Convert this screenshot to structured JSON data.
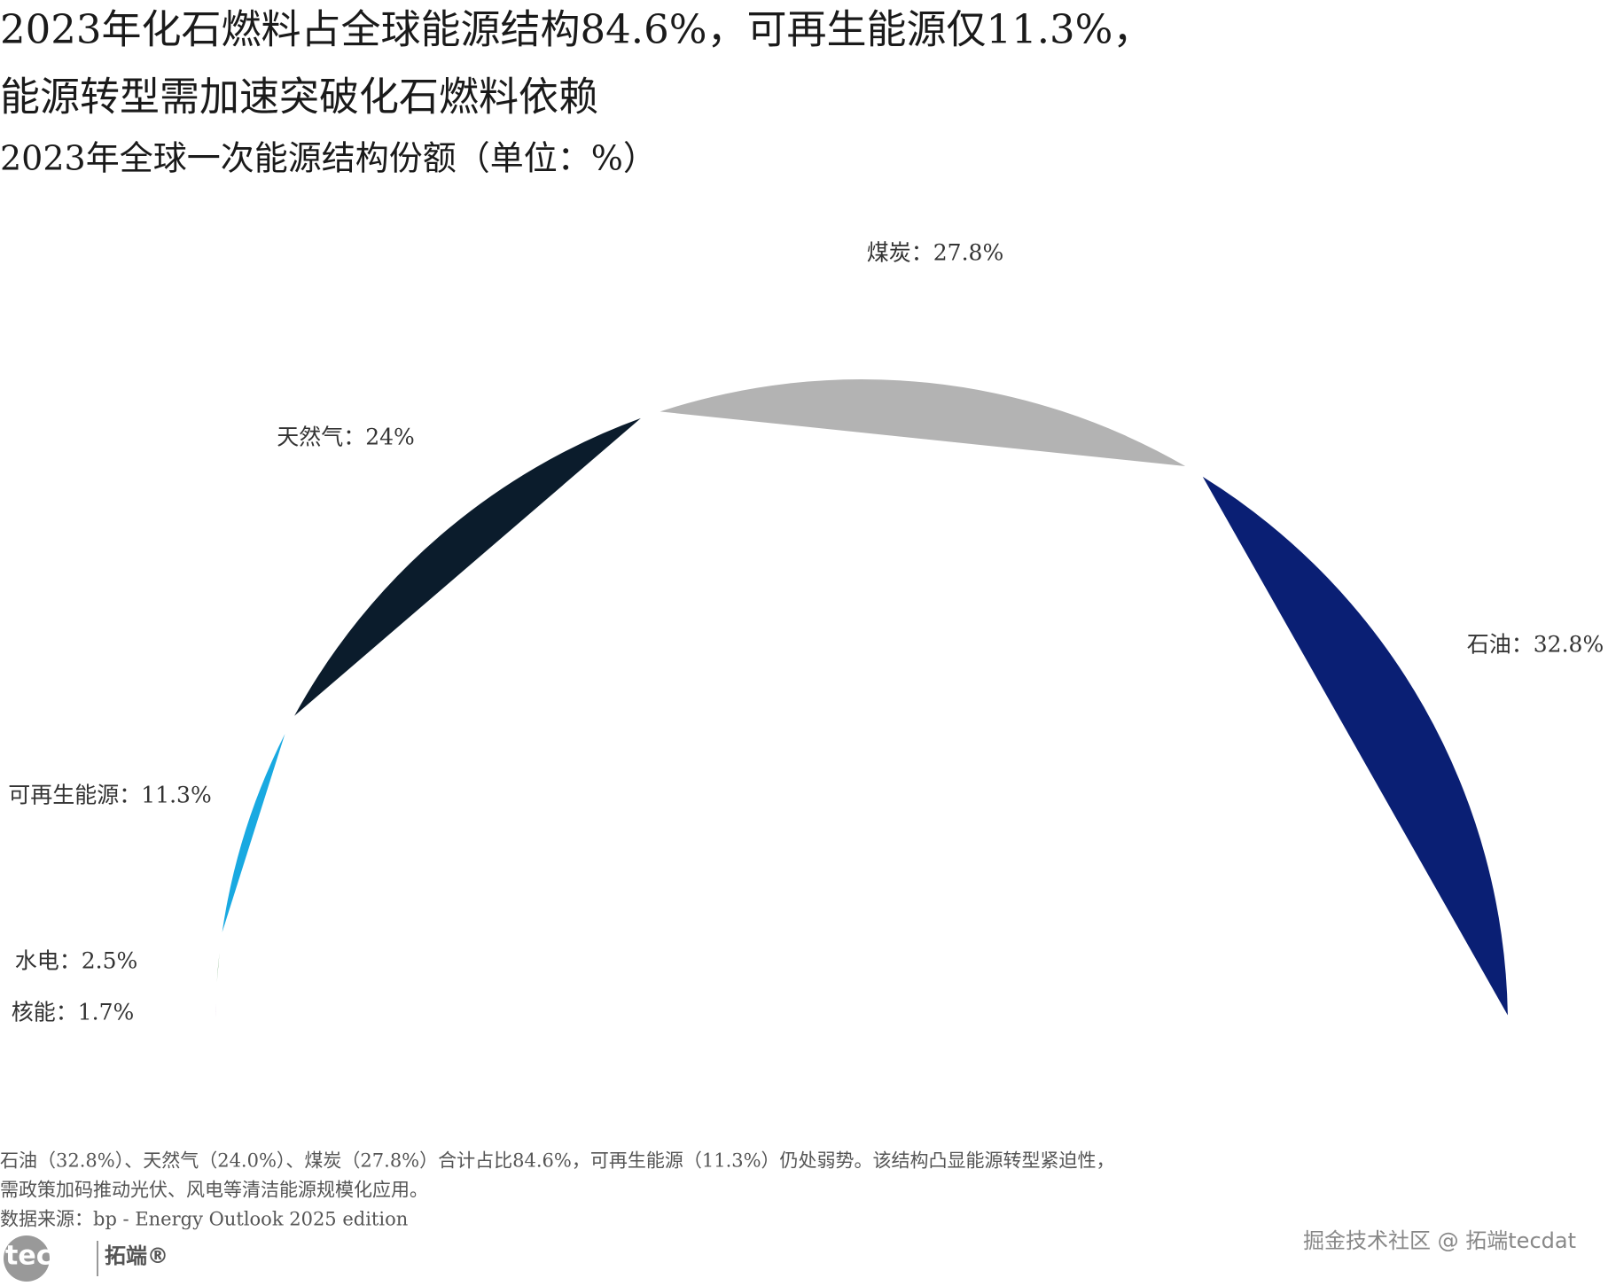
{
  "chart_data": {
    "type": "pie",
    "title_lines": [
      "2023年化石燃料占全球能源结构84.6%，可再生能源仅11.3%，",
      "能源转型需加速突破化石燃料依赖"
    ],
    "subtitle": "2023年全球一次能源结构份额（单位：%）",
    "values": [
      32.8,
      27.8,
      24,
      11.3,
      2.5,
      1.7
    ],
    "value_labels": [
      "石油：32.8%",
      "煤炭：27.8%",
      "天然气：24%",
      "可再生能源：11.3%",
      "水电：2.5%",
      "核能：1.7%"
    ],
    "colors": [
      "#0a1f74",
      "#b3b3b3",
      "#0b1c2c",
      "#19a9e1",
      "#2e7d32",
      "#7b1fa2"
    ],
    "notes": [
      "石油（32.8%）、天然气（24.0%）、煤炭（27.8%）合计占比84.6%，可再生能源（11.3%）仍处弱势。该结构凸显能源转型紧迫性，",
      "需政策加码推动光伏、风电等清洁能源规模化应用。"
    ],
    "source": "数据来源：bp - Energy Outlook 2025 edition",
    "logo": [
      "tecdat",
      "拓端®"
    ],
    "watermark": "掘金技术社区 @ 拓端tecdat"
  }
}
